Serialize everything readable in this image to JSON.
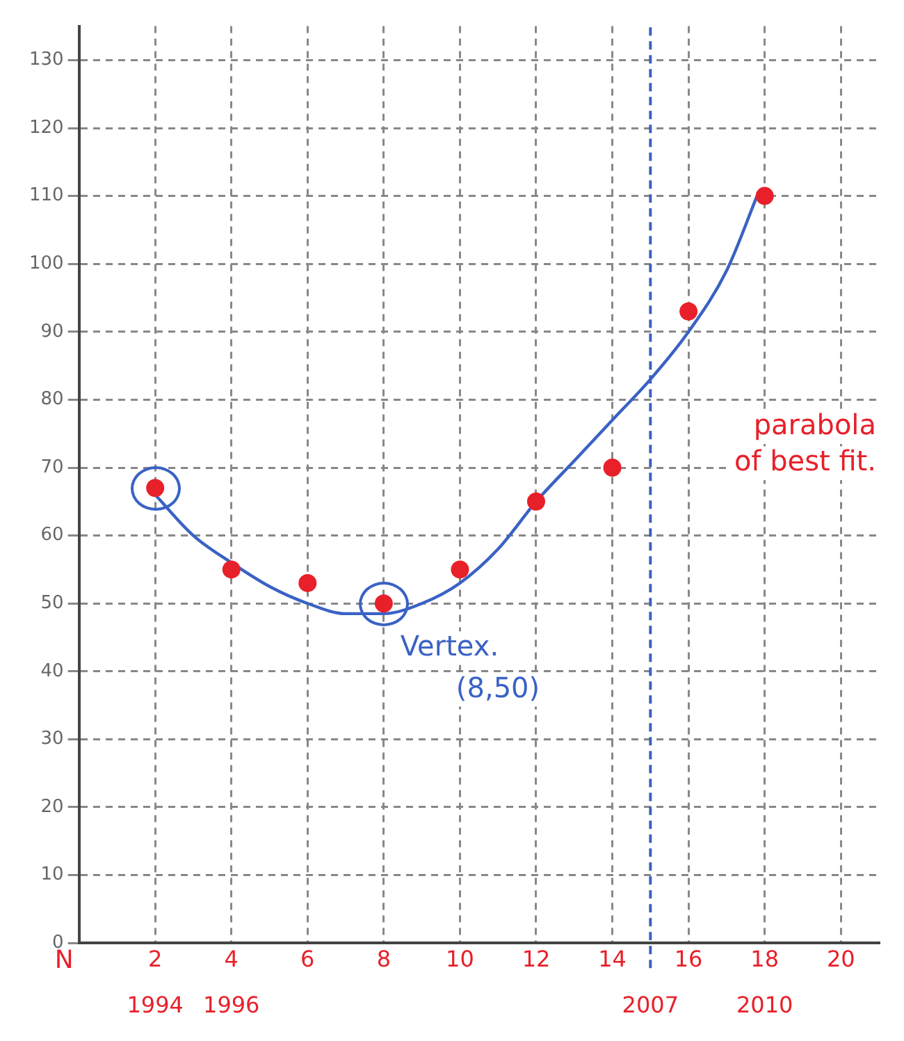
{
  "chart_data": {
    "type": "scatter",
    "xlabel": "N",
    "series": [
      {
        "color": "#e8202a",
        "x": [
          2,
          4,
          6,
          8,
          10,
          12,
          14,
          16,
          18
        ],
        "values": [
          67,
          55,
          53,
          50,
          55,
          65,
          70,
          93,
          110
        ]
      },
      {
        "type": "line",
        "color": "#3a62c4",
        "marker": "none",
        "x": [
          2,
          3,
          4,
          5,
          6,
          7,
          8,
          9,
          10,
          11,
          12,
          13,
          14,
          15,
          16,
          17,
          17.8
        ],
        "values": [
          66,
          60,
          56,
          52.5,
          50,
          48.5,
          48.5,
          50,
          53,
          58,
          65,
          71,
          77,
          83,
          90,
          99,
          110
        ]
      }
    ],
    "xlim": [
      0,
      21
    ],
    "xticks": [
      2,
      4,
      6,
      8,
      10,
      12,
      14,
      16,
      18,
      20
    ],
    "x2lim": [
      1992,
      2013
    ],
    "x2ticks": [
      1994,
      1996,
      2007,
      2010
    ],
    "ylim": [
      0,
      135
    ],
    "yticks": [
      0,
      10,
      20,
      30,
      40,
      50,
      60,
      70,
      80,
      90,
      100,
      110,
      120,
      130
    ],
    "ref_lines": [
      {
        "axis": "x",
        "value": 15,
        "color": "#3a62c4",
        "line_style": "dashed"
      }
    ],
    "annotations": [
      {
        "text": "Vertex. (8,50)",
        "x": 8,
        "y": 50
      },
      "parabola of best fit."
    ],
    "grid": true,
    "legend": false,
    "marker": "circle"
  }
}
